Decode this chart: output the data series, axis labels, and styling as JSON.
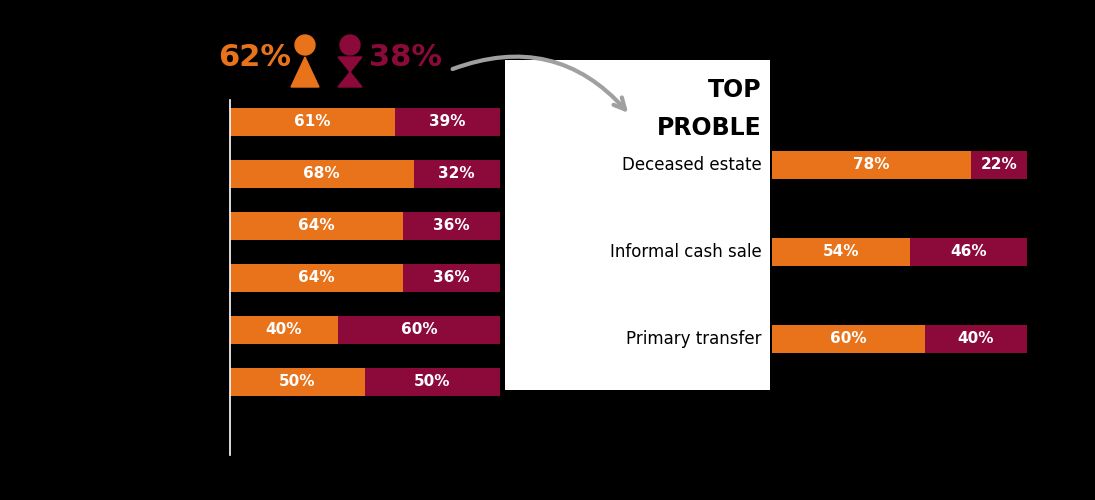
{
  "background_color": "#000000",
  "orange_color": "#E8731A",
  "maroon_color": "#8B0A3A",
  "female_pct": "62%",
  "male_pct": "38%",
  "left_bars": [
    {
      "female": 61,
      "male": 39
    },
    {
      "female": 68,
      "male": 32
    },
    {
      "female": 64,
      "male": 36
    },
    {
      "female": 64,
      "male": 36
    },
    {
      "female": 40,
      "male": 60
    },
    {
      "female": 50,
      "male": 50
    }
  ],
  "right_labels": [
    "Deceased estate",
    "Informal cash sale",
    "Primary transfer"
  ],
  "right_bars": [
    {
      "female": 78,
      "male": 22
    },
    {
      "female": 54,
      "male": 46
    },
    {
      "female": 60,
      "male": 40
    }
  ],
  "top_text_line1": "TOP",
  "top_text_line2": "PROBLE",
  "arrow_color": "#A0A0A0",
  "text_color_white": "#FFFFFF",
  "text_color_black": "#000000",
  "bar_fontsize": 11,
  "label_fontsize": 12,
  "header_fontsize": 17,
  "pct_fontsize": 22,
  "icon_fontsize": 28
}
